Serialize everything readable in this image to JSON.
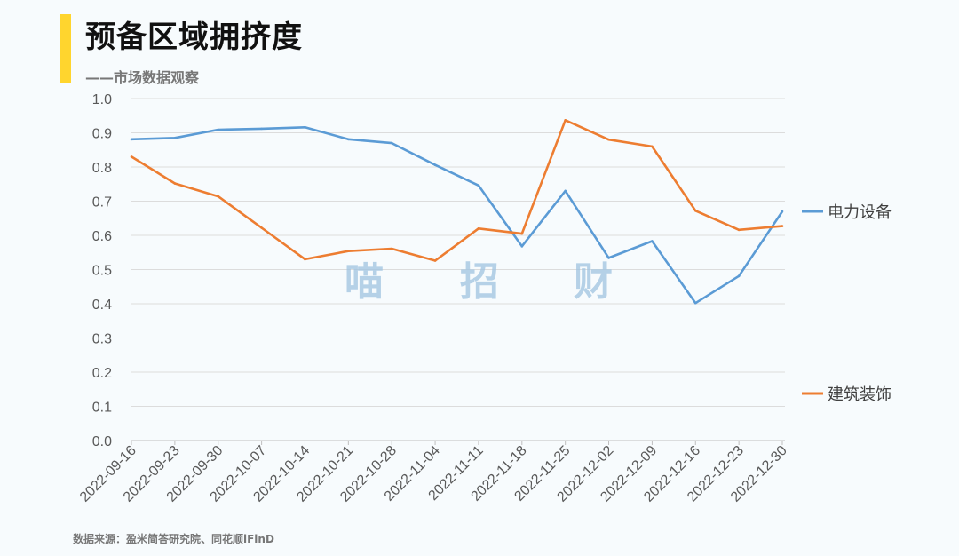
{
  "header": {
    "title": "预备区域拥挤度",
    "subtitle": "——市场数据观察",
    "accent_color": "#ffd52e"
  },
  "watermark": [
    "喵",
    "招",
    "财"
  ],
  "footer": {
    "source": "数据来源：盈米简答研究院、同花顺iFinD"
  },
  "chart_data": {
    "type": "line",
    "categories": [
      "2022-09-16",
      "2022-09-23",
      "2022-09-30",
      "2022-10-07",
      "2022-10-14",
      "2022-10-21",
      "2022-10-28",
      "2022-11-04",
      "2022-11-11",
      "2022-11-18",
      "2022-11-25",
      "2022-12-02",
      "2022-12-09",
      "2022-12-16",
      "2022-12-23",
      "2022-12-30"
    ],
    "series": [
      {
        "name": "电力设备",
        "color": "#5b9bd5",
        "values": [
          0.881,
          0.885,
          0.909,
          0.912,
          0.916,
          0.881,
          0.87,
          0.806,
          0.746,
          0.568,
          0.73,
          0.534,
          0.583,
          0.402,
          0.481,
          0.67
        ]
      },
      {
        "name": "建筑装饰",
        "color": "#ed7d31",
        "values": [
          0.83,
          0.752,
          0.714,
          0.622,
          0.53,
          0.554,
          0.561,
          0.526,
          0.62,
          0.605,
          0.937,
          0.88,
          0.86,
          0.672,
          0.616,
          0.627
        ]
      }
    ],
    "ylim": [
      0,
      1.0
    ],
    "yticks": [
      "0.0",
      "0.1",
      "0.2",
      "0.3",
      "0.4",
      "0.5",
      "0.6",
      "0.7",
      "0.8",
      "0.9",
      "1.0"
    ],
    "grid": true,
    "legend_position": "right"
  }
}
